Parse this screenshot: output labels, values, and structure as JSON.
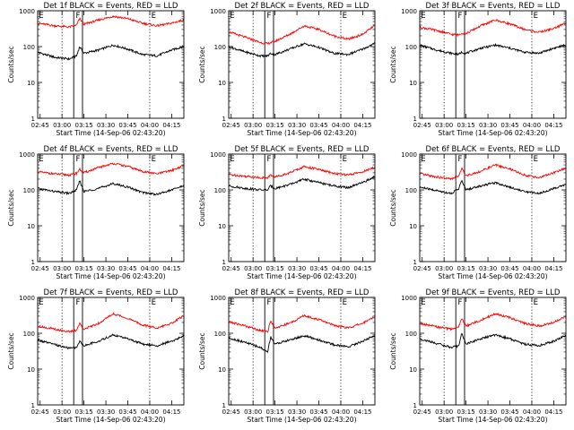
{
  "figure": {
    "shared": {
      "xlabel": "Start Time (14-Sep-06 02:43:20)",
      "ylabel": "Counts/sec",
      "x_ticks": [
        "02:45",
        "03:00",
        "03:15",
        "03:30",
        "03:45",
        "04:00",
        "04:15"
      ],
      "y_ticks": [
        "1",
        "10",
        "100",
        "1000"
      ],
      "marker_labels": [
        "E",
        "F",
        "E"
      ],
      "colors": {
        "events": "#000000",
        "lld": "#ff0000"
      }
    }
  },
  "chart_data": [
    {
      "type": "line",
      "title": "Det 1f BLACK = Events, RED = LLD",
      "ylog": true,
      "ylim": [
        1,
        1000
      ],
      "x_range": [
        "02:43:20",
        "04:23:20"
      ],
      "series": [
        {
          "color": "#000000",
          "x": [
            "02:43",
            "02:55",
            "03:05",
            "03:10",
            "03:12",
            "03:15",
            "03:25",
            "03:35",
            "03:45",
            "03:55",
            "04:05",
            "04:15",
            "04:23"
          ],
          "values": [
            70,
            50,
            45,
            55,
            100,
            65,
            80,
            110,
            85,
            60,
            55,
            80,
            100
          ]
        },
        {
          "color": "#ff0000",
          "x": [
            "02:43",
            "02:55",
            "03:05",
            "03:10",
            "03:12",
            "03:15",
            "03:25",
            "03:35",
            "03:45",
            "03:55",
            "04:05",
            "04:15",
            "04:23"
          ],
          "values": [
            450,
            380,
            350,
            400,
            600,
            420,
            550,
            700,
            600,
            450,
            380,
            450,
            550
          ]
        }
      ]
    },
    {
      "type": "line",
      "title": "Det 2f BLACK = Events, RED = LLD",
      "ylog": true,
      "ylim": [
        1,
        1000
      ],
      "x_range": [
        "02:43:20",
        "04:23:20"
      ],
      "series": [
        {
          "color": "#000000",
          "x": [
            "02:43",
            "02:55",
            "03:05",
            "03:10",
            "03:12",
            "03:15",
            "03:25",
            "03:35",
            "03:45",
            "03:55",
            "04:05",
            "04:15",
            "04:23"
          ],
          "values": [
            100,
            70,
            55,
            55,
            65,
            60,
            85,
            120,
            95,
            65,
            60,
            85,
            120
          ]
        },
        {
          "color": "#ff0000",
          "x": [
            "02:43",
            "02:55",
            "03:05",
            "03:10",
            "03:12",
            "03:15",
            "03:25",
            "03:35",
            "03:45",
            "03:55",
            "04:05",
            "04:15",
            "04:23"
          ],
          "values": [
            260,
            180,
            130,
            120,
            130,
            140,
            220,
            380,
            300,
            200,
            160,
            220,
            380
          ]
        }
      ]
    },
    {
      "type": "line",
      "title": "Det 3f BLACK = Events, RED = LLD",
      "ylog": true,
      "ylim": [
        1,
        1000
      ],
      "x_range": [
        "02:43:20",
        "04:23:20"
      ],
      "series": [
        {
          "color": "#000000",
          "x": [
            "02:43",
            "02:55",
            "03:05",
            "03:10",
            "03:12",
            "03:15",
            "03:25",
            "03:35",
            "03:45",
            "03:55",
            "04:05",
            "04:15",
            "04:23"
          ],
          "values": [
            110,
            80,
            65,
            60,
            70,
            65,
            90,
            110,
            90,
            70,
            65,
            90,
            110
          ]
        },
        {
          "color": "#ff0000",
          "x": [
            "02:43",
            "02:55",
            "03:05",
            "03:10",
            "03:12",
            "03:15",
            "03:25",
            "03:35",
            "03:45",
            "03:55",
            "04:05",
            "04:15",
            "04:23"
          ],
          "values": [
            350,
            280,
            220,
            210,
            240,
            230,
            380,
            550,
            430,
            300,
            250,
            320,
            450
          ]
        }
      ]
    },
    {
      "type": "line",
      "title": "Det 4f BLACK = Events, RED = LLD",
      "ylog": true,
      "ylim": [
        1,
        1000
      ],
      "x_range": [
        "02:43:20",
        "04:23:20"
      ],
      "series": [
        {
          "color": "#000000",
          "x": [
            "02:43",
            "02:55",
            "03:05",
            "03:10",
            "03:12",
            "03:15",
            "03:25",
            "03:35",
            "03:45",
            "03:55",
            "04:05",
            "04:15",
            "04:23"
          ],
          "values": [
            110,
            90,
            80,
            100,
            180,
            90,
            110,
            150,
            120,
            85,
            75,
            100,
            130
          ]
        },
        {
          "color": "#ff0000",
          "x": [
            "02:43",
            "02:55",
            "03:05",
            "03:10",
            "03:12",
            "03:15",
            "03:25",
            "03:35",
            "03:45",
            "03:55",
            "04:05",
            "04:15",
            "04:23"
          ],
          "values": [
            320,
            280,
            260,
            290,
            380,
            300,
            420,
            550,
            450,
            330,
            280,
            350,
            470
          ]
        }
      ]
    },
    {
      "type": "line",
      "title": "Det 5f BLACK = Events, RED = LLD",
      "ylog": true,
      "ylim": [
        1,
        1000
      ],
      "x_range": [
        "02:43:20",
        "04:23:20"
      ],
      "series": [
        {
          "color": "#000000",
          "x": [
            "02:43",
            "02:55",
            "03:05",
            "03:10",
            "03:12",
            "03:15",
            "03:25",
            "03:35",
            "03:45",
            "03:55",
            "04:05",
            "04:15",
            "04:23"
          ],
          "values": [
            130,
            110,
            100,
            100,
            130,
            110,
            140,
            200,
            160,
            130,
            115,
            160,
            230
          ]
        },
        {
          "color": "#ff0000",
          "x": [
            "02:43",
            "02:55",
            "03:05",
            "03:10",
            "03:12",
            "03:15",
            "03:25",
            "03:35",
            "03:45",
            "03:55",
            "04:05",
            "04:15",
            "04:23"
          ],
          "values": [
            270,
            240,
            220,
            220,
            260,
            230,
            300,
            450,
            370,
            290,
            260,
            320,
            420
          ]
        }
      ]
    },
    {
      "type": "line",
      "title": "Det 6f BLACK = Events, RED = LLD",
      "ylog": true,
      "ylim": [
        1,
        1000
      ],
      "x_range": [
        "02:43:20",
        "04:23:20"
      ],
      "series": [
        {
          "color": "#000000",
          "x": [
            "02:43",
            "02:55",
            "03:05",
            "03:10",
            "03:12",
            "03:15",
            "03:25",
            "03:35",
            "03:45",
            "03:55",
            "04:05",
            "04:15",
            "04:23"
          ],
          "values": [
            120,
            95,
            80,
            110,
            180,
            100,
            130,
            160,
            120,
            90,
            80,
            110,
            140
          ]
        },
        {
          "color": "#ff0000",
          "x": [
            "02:43",
            "02:55",
            "03:05",
            "03:10",
            "03:12",
            "03:15",
            "03:25",
            "03:35",
            "03:45",
            "03:55",
            "04:05",
            "04:15",
            "04:23"
          ],
          "values": [
            280,
            230,
            200,
            240,
            400,
            250,
            330,
            500,
            380,
            260,
            220,
            300,
            400
          ]
        }
      ]
    },
    {
      "type": "line",
      "title": "Det 7f BLACK = Events, RED = LLD",
      "ylog": true,
      "ylim": [
        1,
        1000
      ],
      "x_range": [
        "02:43:20",
        "04:23:20"
      ],
      "series": [
        {
          "color": "#000000",
          "x": [
            "02:43",
            "02:55",
            "03:05",
            "03:10",
            "03:12",
            "03:15",
            "03:25",
            "03:35",
            "03:45",
            "03:55",
            "04:05",
            "04:15",
            "04:23"
          ],
          "values": [
            65,
            48,
            38,
            40,
            60,
            45,
            60,
            90,
            70,
            50,
            45,
            60,
            85
          ]
        },
        {
          "color": "#ff0000",
          "x": [
            "02:43",
            "02:55",
            "03:05",
            "03:10",
            "03:12",
            "03:15",
            "03:25",
            "03:35",
            "03:45",
            "03:55",
            "04:05",
            "04:15",
            "04:23"
          ],
          "values": [
            160,
            130,
            110,
            120,
            190,
            130,
            190,
            350,
            260,
            170,
            140,
            190,
            300
          ]
        }
      ]
    },
    {
      "type": "line",
      "title": "Det 8f BLACK = Events, RED = LLD",
      "ylog": true,
      "ylim": [
        1,
        1000
      ],
      "x_range": [
        "02:43:20",
        "04:23:20"
      ],
      "series": [
        {
          "color": "#000000",
          "x": [
            "02:43",
            "02:55",
            "03:05",
            "03:10",
            "03:12",
            "03:15",
            "03:25",
            "03:35",
            "03:45",
            "03:55",
            "04:05",
            "04:15",
            "04:23"
          ],
          "values": [
            75,
            55,
            40,
            30,
            80,
            50,
            65,
            85,
            65,
            48,
            42,
            60,
            85
          ]
        },
        {
          "color": "#ff0000",
          "x": [
            "02:43",
            "02:55",
            "03:05",
            "03:10",
            "03:12",
            "03:15",
            "03:25",
            "03:35",
            "03:45",
            "03:55",
            "04:05",
            "04:15",
            "04:23"
          ],
          "values": [
            210,
            160,
            120,
            110,
            220,
            140,
            190,
            310,
            240,
            170,
            140,
            190,
            290
          ]
        }
      ]
    },
    {
      "type": "line",
      "title": "Det 9f BLACK = Events, RED = LLD",
      "ylog": true,
      "ylim": [
        1,
        1000
      ],
      "x_range": [
        "02:43:20",
        "04:23:20"
      ],
      "series": [
        {
          "color": "#000000",
          "x": [
            "02:43",
            "02:55",
            "03:05",
            "03:10",
            "03:12",
            "03:15",
            "03:25",
            "03:35",
            "03:45",
            "03:55",
            "04:05",
            "04:15",
            "04:23"
          ],
          "values": [
            70,
            52,
            40,
            45,
            100,
            50,
            70,
            90,
            70,
            50,
            45,
            60,
            85
          ]
        },
        {
          "color": "#ff0000",
          "x": [
            "02:43",
            "02:55",
            "03:05",
            "03:10",
            "03:12",
            "03:15",
            "03:25",
            "03:35",
            "03:45",
            "03:55",
            "04:05",
            "04:15",
            "04:23"
          ],
          "values": [
            190,
            150,
            130,
            150,
            260,
            160,
            230,
            350,
            270,
            190,
            160,
            200,
            290
          ]
        }
      ]
    }
  ]
}
